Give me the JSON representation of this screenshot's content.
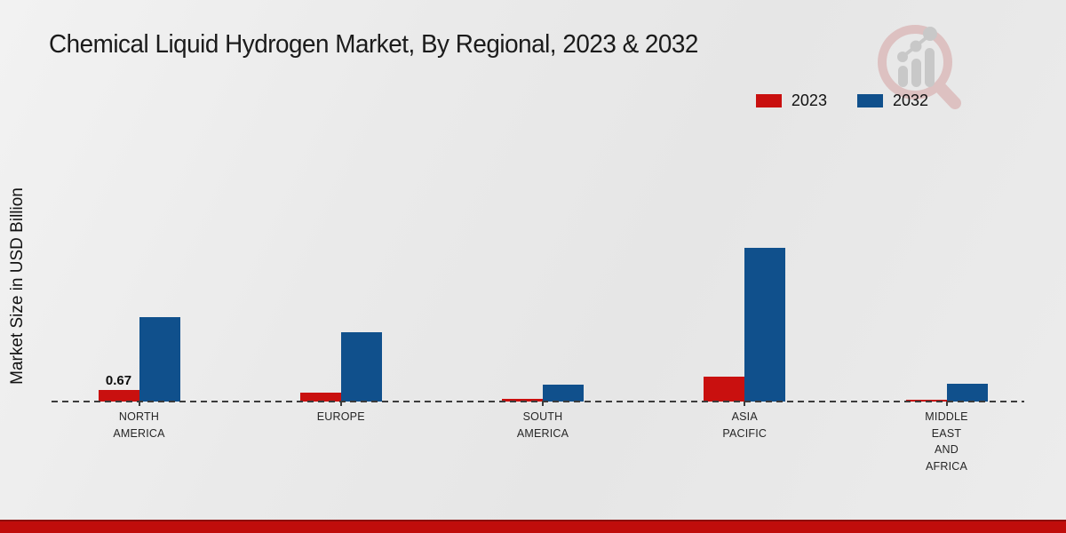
{
  "title": "Chemical Liquid Hydrogen Market, By Regional, 2023 & 2032",
  "y_axis_label": "Market Size in USD Billion",
  "legend": [
    {
      "label": "2023",
      "color": "#c9100f"
    },
    {
      "label": "2032",
      "color": "#10508c"
    }
  ],
  "watermark_icon": "magnifier-bar-chart-logo",
  "colors": {
    "series_2023_red": "#c9100f",
    "series_2032_blue": "#10508c",
    "footer_red": "#c00d0b",
    "footer_red_dark": "#8e0f0d",
    "background": "#eaeaea",
    "axis": "#3c3c3c"
  },
  "chart_data": {
    "type": "bar",
    "title": "Chemical Liquid Hydrogen Market, By Regional, 2023 & 2032",
    "xlabel": "",
    "ylabel": "Market Size in USD Billion",
    "categories": [
      "NORTH AMERICA",
      "EUROPE",
      "SOUTH AMERICA",
      "ASIA PACIFIC",
      "MIDDLE EAST AND AFRICA"
    ],
    "category_lines": [
      [
        "NORTH",
        "AMERICA"
      ],
      [
        "EUROPE"
      ],
      [
        "SOUTH",
        "AMERICA"
      ],
      [
        "ASIA",
        "PACIFIC"
      ],
      [
        "MIDDLE",
        "EAST",
        "AND",
        "AFRICA"
      ]
    ],
    "series": [
      {
        "name": "2023",
        "color": "#c9100f",
        "values": [
          0.67,
          0.5,
          0.15,
          1.45,
          0.1
        ]
      },
      {
        "name": "2032",
        "color": "#10508c",
        "values": [
          4.9,
          4.0,
          1.0,
          8.9,
          1.05
        ]
      }
    ],
    "data_labels": [
      {
        "series_index": 0,
        "category_index": 0,
        "text": "0.67"
      }
    ],
    "ylim": [
      0,
      9.5
    ],
    "grid": false,
    "axis_style": "dashed-baseline-only",
    "legend_position": "top-right"
  }
}
